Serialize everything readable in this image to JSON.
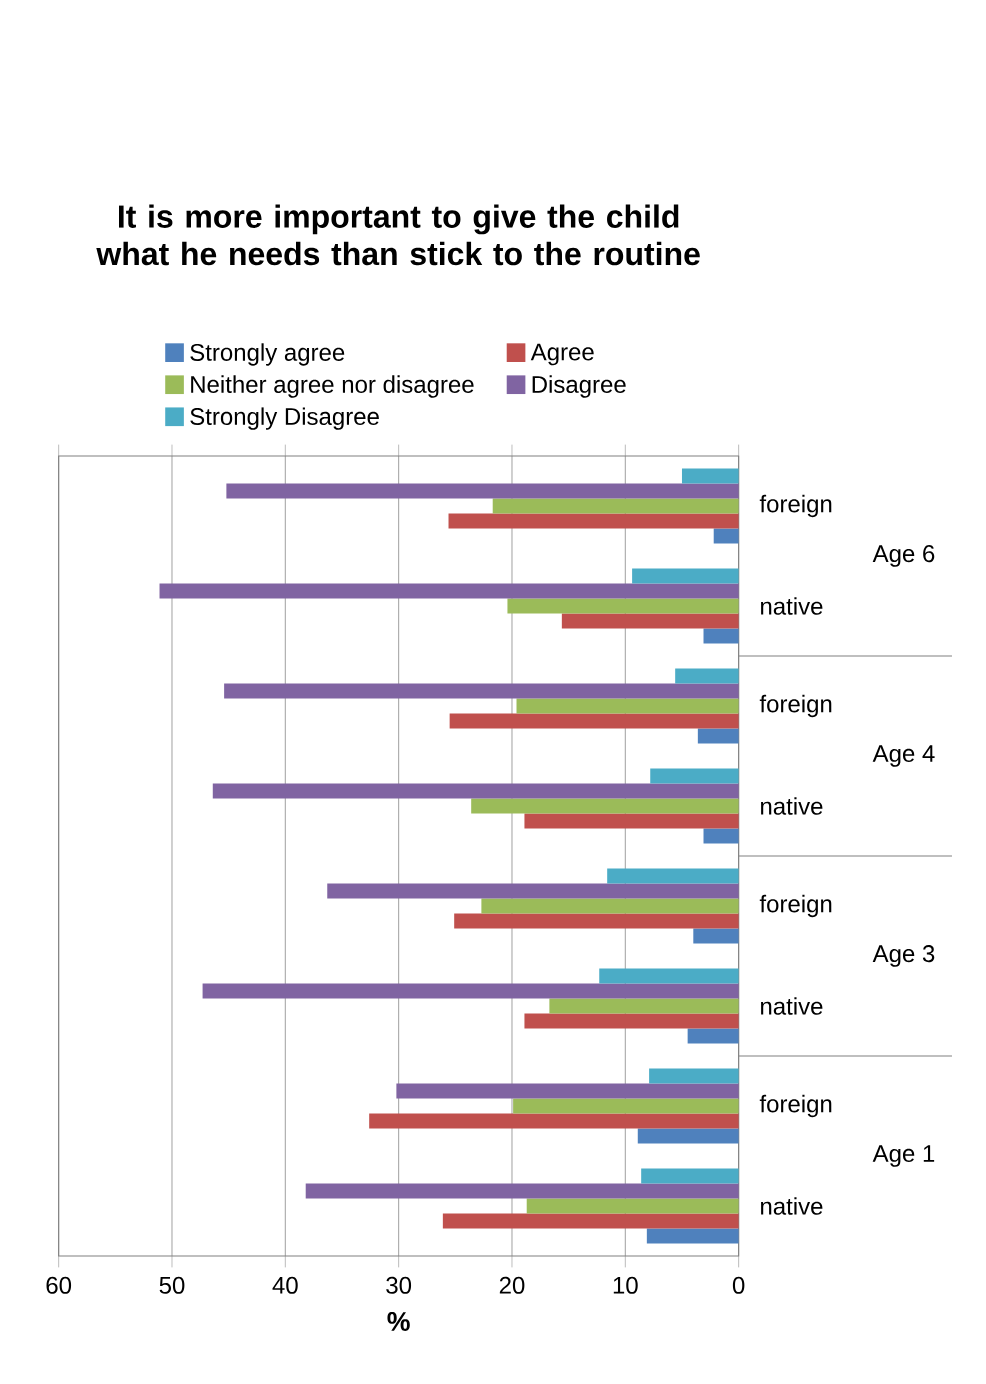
{
  "chart_data": {
    "type": "bar",
    "orientation": "horizontal",
    "title": "It is more important to give the child what he needs than stick to the routine",
    "xlabel": "%",
    "categories": [
      "foreign",
      "native",
      "foreign",
      "native",
      "foreign",
      "native",
      "foreign",
      "native"
    ],
    "annotations": [
      "Age 6",
      "Age 4",
      "Age 3",
      "Age 1"
    ],
    "series": [
      {
        "name": "Strongly agree",
        "color": "#4f81bd",
        "values": [
          2.2,
          3.1,
          3.6,
          3.1,
          4.0,
          4.5,
          8.9,
          8.1
        ]
      },
      {
        "name": "Agree",
        "color": "#c0504d",
        "values": [
          25.6,
          15.6,
          25.5,
          18.9,
          25.1,
          18.9,
          32.6,
          26.1
        ]
      },
      {
        "name": "Neither agree nor disagree",
        "color": "#9bbb59",
        "values": [
          21.7,
          20.4,
          19.6,
          23.6,
          22.7,
          16.7,
          19.9,
          18.7
        ]
      },
      {
        "name": "Disagree",
        "color": "#8064a2",
        "values": [
          45.2,
          51.1,
          45.4,
          46.4,
          36.3,
          47.3,
          30.2,
          38.2
        ]
      },
      {
        "name": "Strongly Disagree",
        "color": "#4bacc6",
        "values": [
          5.0,
          9.4,
          5.6,
          7.8,
          11.6,
          12.3,
          7.9,
          8.6
        ]
      }
    ],
    "xlim": [
      60,
      0
    ],
    "xticks": [
      0,
      10,
      20,
      30,
      40,
      50,
      60
    ],
    "grid": "x",
    "legend": "top"
  }
}
